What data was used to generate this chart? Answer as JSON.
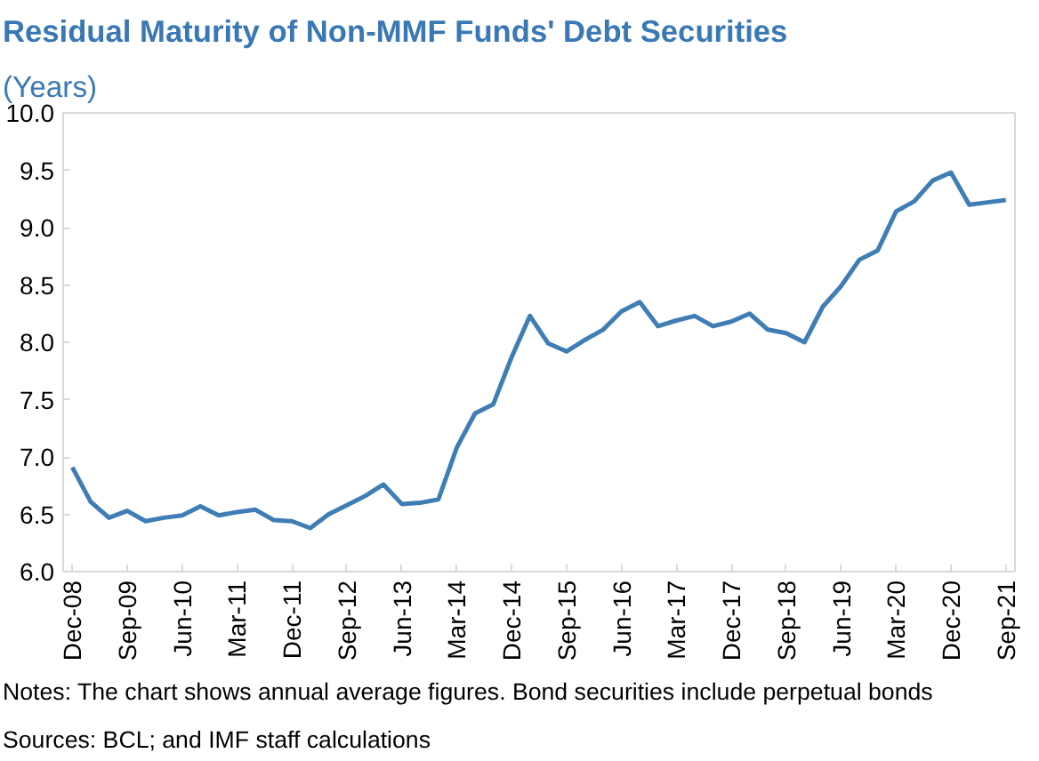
{
  "chart_data": {
    "type": "line",
    "title": "Residual Maturity of Non-MMF Funds' Debt Securities",
    "subtitle": "(Years)",
    "categories": [
      "Dec-08",
      null,
      null,
      "Sep-09",
      null,
      null,
      "Jun-10",
      null,
      null,
      "Mar-11",
      null,
      null,
      "Dec-11",
      null,
      null,
      "Sep-12",
      null,
      null,
      "Jun-13",
      null,
      null,
      "Mar-14",
      null,
      null,
      "Dec-14",
      null,
      null,
      "Sep-15",
      null,
      null,
      "Jun-16",
      null,
      null,
      "Mar-17",
      null,
      null,
      "Dec-17",
      null,
      null,
      "Sep-18",
      null,
      null,
      "Jun-19",
      null,
      null,
      "Mar-20",
      null,
      null,
      "Dec-20",
      null,
      null,
      "Sep-21"
    ],
    "series": [
      {
        "color": "#3f7db5",
        "values": [
          6.91,
          6.61,
          6.47,
          6.53,
          6.44,
          6.47,
          6.49,
          6.57,
          6.49,
          6.52,
          6.54,
          6.45,
          6.44,
          6.38,
          6.5,
          6.58,
          6.66,
          6.76,
          6.59,
          6.6,
          6.63,
          7.08,
          7.38,
          7.46,
          7.87,
          8.23,
          7.99,
          7.92,
          8.02,
          8.11,
          8.27,
          8.35,
          8.14,
          8.19,
          8.23,
          8.14,
          8.18,
          8.25,
          8.11,
          8.08,
          8.0,
          8.31,
          8.49,
          8.72,
          8.8,
          9.14,
          9.23,
          9.41,
          9.48,
          9.2,
          9.22,
          9.24
        ]
      }
    ],
    "ylim": [
      6.0,
      10.0
    ],
    "yticks": [
      {
        "value": 6,
        "label": "6.0"
      },
      6.5,
      {
        "value": 7,
        "label": "7.0"
      },
      7.5,
      {
        "value": 8,
        "label": "8.0"
      },
      8.5,
      {
        "value": 9,
        "label": "9.0"
      },
      9.5,
      {
        "value": 10,
        "label": "10.0"
      }
    ],
    "grid": false,
    "marker": "none",
    "line_style": "solid",
    "annotations": [
      "Notes: The chart shows annual average figures. Bond securities include perpetual bonds",
      "Sources: BCL; and IMF staff calculations"
    ]
  }
}
